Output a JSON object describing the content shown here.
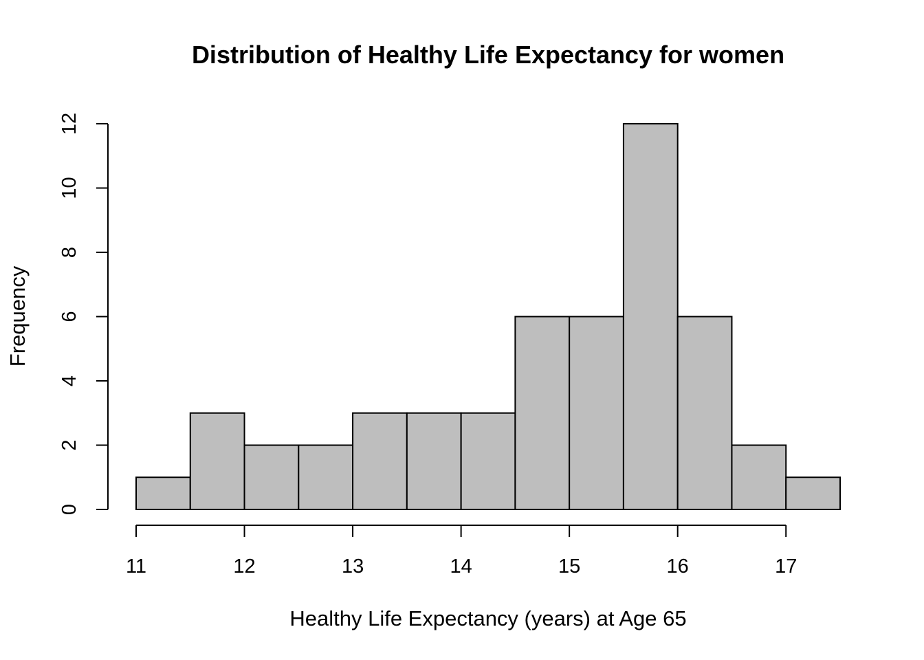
{
  "chart_data": {
    "type": "bar",
    "subtype": "histogram",
    "title": "Distribution of Healthy Life Expectancy for women",
    "xlabel": "Healthy Life Expectancy (years) at Age 65",
    "ylabel": "Frequency",
    "bins": [
      {
        "x0": 11.0,
        "x1": 11.5,
        "count": 1
      },
      {
        "x0": 11.5,
        "x1": 12.0,
        "count": 3
      },
      {
        "x0": 12.0,
        "x1": 12.5,
        "count": 2
      },
      {
        "x0": 12.5,
        "x1": 13.0,
        "count": 2
      },
      {
        "x0": 13.0,
        "x1": 13.5,
        "count": 3
      },
      {
        "x0": 13.5,
        "x1": 14.0,
        "count": 3
      },
      {
        "x0": 14.0,
        "x1": 14.5,
        "count": 3
      },
      {
        "x0": 14.5,
        "x1": 15.0,
        "count": 6
      },
      {
        "x0": 15.0,
        "x1": 15.5,
        "count": 6
      },
      {
        "x0": 15.5,
        "x1": 16.0,
        "count": 12
      },
      {
        "x0": 16.0,
        "x1": 16.5,
        "count": 6
      },
      {
        "x0": 16.5,
        "x1": 17.0,
        "count": 2
      },
      {
        "x0": 17.0,
        "x1": 17.5,
        "count": 1
      }
    ],
    "x_ticks": [
      "11",
      "12",
      "13",
      "14",
      "15",
      "16",
      "17"
    ],
    "y_ticks": [
      "0",
      "2",
      "4",
      "6",
      "8",
      "10",
      "12"
    ],
    "xlim": [
      11,
      17.5
    ],
    "ylim": [
      0,
      12
    ],
    "grid": false,
    "bar_fill": "#bebebe",
    "bar_stroke": "#000000"
  }
}
